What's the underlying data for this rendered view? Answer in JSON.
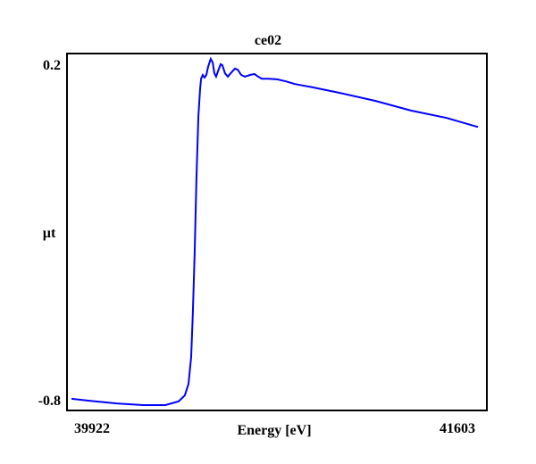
{
  "chart_data": {
    "type": "line",
    "title": "ce02",
    "xlabel": "Energy [eV]",
    "ylabel": "µt",
    "xlim": [
      39922,
      41603
    ],
    "ylim": [
      -0.8,
      0.2
    ],
    "xticks": [
      "39922",
      "41603"
    ],
    "yticks": [
      "0.2",
      "-0.8"
    ],
    "grid": false,
    "line_color": "#0000ff",
    "series": [
      {
        "name": "ce02",
        "x": [
          39922,
          39996,
          40107,
          40218,
          40310,
          40365,
          40391,
          40406,
          40417,
          40424,
          40432,
          40439,
          40447,
          40454,
          40458,
          40465,
          40472,
          40480,
          40487,
          40498,
          40506,
          40513,
          40520,
          40528,
          40539,
          40546,
          40557,
          40569,
          40580,
          40598,
          40609,
          40624,
          40639,
          40661,
          40679,
          40690,
          40709,
          40735,
          40772,
          40809,
          40846,
          40920,
          41030,
          41178,
          41326,
          41474,
          41603
        ],
        "y": [
          -0.797,
          -0.803,
          -0.811,
          -0.816,
          -0.816,
          -0.805,
          -0.787,
          -0.753,
          -0.672,
          -0.539,
          -0.353,
          -0.14,
          0.046,
          0.126,
          0.157,
          0.168,
          0.16,
          0.168,
          0.192,
          0.216,
          0.205,
          0.173,
          0.163,
          0.179,
          0.2,
          0.197,
          0.173,
          0.163,
          0.173,
          0.187,
          0.184,
          0.168,
          0.163,
          0.168,
          0.171,
          0.165,
          0.157,
          0.157,
          0.155,
          0.149,
          0.141,
          0.131,
          0.115,
          0.091,
          0.062,
          0.04,
          0.013
        ]
      }
    ]
  }
}
